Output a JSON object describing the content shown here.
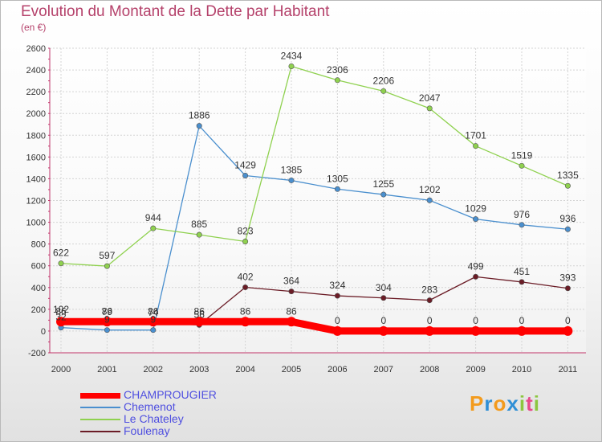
{
  "chart_data": {
    "type": "line",
    "title": "Evolution du Montant de la Dette par Habitant",
    "subtitle": "(en €)",
    "x": [
      "2000",
      "2001",
      "2002",
      "2003",
      "2004",
      "2005",
      "2006",
      "2007",
      "2008",
      "2009",
      "2010",
      "2011"
    ],
    "ylim": [
      -200,
      2600
    ],
    "yticks": [
      -200,
      0,
      200,
      400,
      600,
      800,
      1000,
      1200,
      1400,
      1600,
      1800,
      2000,
      2200,
      2400,
      2600
    ],
    "grid": true,
    "legend_placement": "bottom-left",
    "series": [
      {
        "name": "CHAMPROUGIER",
        "color": "#ff0000",
        "values": [
          86,
          86,
          86,
          86,
          86,
          86,
          0,
          0,
          0,
          0,
          0,
          0
        ]
      },
      {
        "name": "Chemenot",
        "color": "#4a8fce",
        "values": [
          32,
          9,
          9,
          1886,
          1429,
          1385,
          1305,
          1255,
          1202,
          1029,
          976,
          936
        ]
      },
      {
        "name": "Le Chateley",
        "color": "#8fd14f",
        "values": [
          622,
          597,
          944,
          885,
          823,
          2434,
          2306,
          2206,
          2047,
          1701,
          1519,
          1335
        ]
      },
      {
        "name": "Foulenay",
        "color": "#6b1c26",
        "values": [
          102,
          79,
          74,
          56,
          402,
          364,
          324,
          304,
          283,
          499,
          451,
          393
        ]
      }
    ]
  },
  "logo": {
    "text": "Proxiti",
    "letters": [
      "P",
      "r",
      "o",
      "x",
      "i",
      "t",
      "i"
    ],
    "colors": [
      "#f39b1d",
      "#2f8fd6",
      "#f39b1d",
      "#2f8fd6",
      "#8cc63f",
      "#e84a8a",
      "#8cc63f"
    ]
  }
}
